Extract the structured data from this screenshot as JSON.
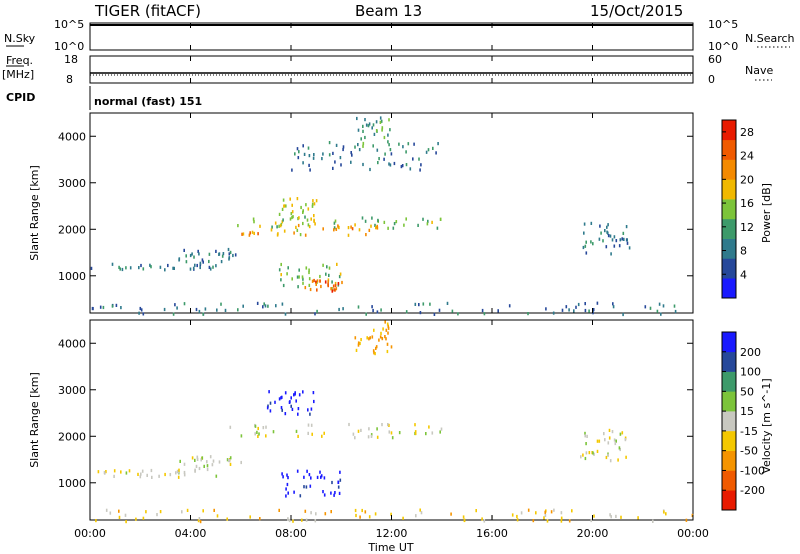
{
  "header": {
    "radar": "TIGER (fitACF)",
    "beam": "Beam 13",
    "date": "15/Oct/2015"
  },
  "status_panels": {
    "nsky_label": "N.Sky",
    "nsky_ticks": [
      "10^5",
      "10^0"
    ],
    "nsearch_label": "N.Search",
    "freq_label": "Freq.",
    "freq_unit": "[MHz]",
    "freq_ticks": [
      "18",
      "8"
    ],
    "nave_label": "Nave",
    "nave_ticks": [
      "60",
      "0"
    ],
    "cpid_label": "CPID",
    "cpid_value": "normal (fast) 151"
  },
  "time_ticks": [
    "00:00",
    "04:00",
    "08:00",
    "12:00",
    "16:00",
    "20:00",
    "00:00"
  ],
  "time_title": "Time UT",
  "colors": {
    "power": [
      "#1a1aff",
      "#26489a",
      "#2f7a8c",
      "#3d9a6a",
      "#7cc43a",
      "#f0b800",
      "#f48a00",
      "#f05a00",
      "#e81a00"
    ],
    "velocity": [
      "#e81a00",
      "#f05a00",
      "#f59400",
      "#f4c800",
      "#c8c8c0",
      "#7cc43a",
      "#3d9a6a",
      "#26489a",
      "#1a1aff"
    ]
  },
  "chart_data": [
    {
      "type": "heatmap",
      "panel": "power",
      "xlabel": "Time UT",
      "ylabel": "Slant Range [km]",
      "xlim": [
        0,
        24
      ],
      "ylim": [
        200,
        4500
      ],
      "y_ticks": [
        1000,
        2000,
        3000,
        4000
      ],
      "x_ticks_hours": [
        0,
        4,
        8,
        12,
        16,
        20,
        24
      ],
      "colorbar": {
        "label": "Power [dB]",
        "ticks": [
          4,
          8,
          12,
          16,
          20,
          24,
          28
        ],
        "range": [
          0,
          30
        ]
      },
      "regions": [
        {
          "t": [
            0,
            5
          ],
          "r": [
            1150,
            1300
          ],
          "value": 8
        },
        {
          "t": [
            3.5,
            6
          ],
          "r": [
            1300,
            1600
          ],
          "value": 8
        },
        {
          "t": [
            5.5,
            14
          ],
          "r": [
            2050,
            2300
          ],
          "value": 14
        },
        {
          "t": [
            6,
            11.5
          ],
          "r": [
            1900,
            2150
          ],
          "value": 20
        },
        {
          "t": [
            7.5,
            10
          ],
          "r": [
            750,
            1300
          ],
          "value": 14
        },
        {
          "t": [
            8.5,
            10
          ],
          "r": [
            700,
            950
          ],
          "value": 24
        },
        {
          "t": [
            7.5,
            9
          ],
          "r": [
            2200,
            2700
          ],
          "value": 16
        },
        {
          "t": [
            10.5,
            12
          ],
          "r": [
            3800,
            4500
          ],
          "value": 12
        },
        {
          "t": [
            8,
            14
          ],
          "r": [
            3300,
            3900
          ],
          "value": 8
        },
        {
          "t": [
            19.5,
            21.5
          ],
          "r": [
            1500,
            2200
          ],
          "value": 8
        },
        {
          "t": [
            0,
            24
          ],
          "r": [
            200,
            450
          ],
          "value": 8
        }
      ]
    },
    {
      "type": "heatmap",
      "panel": "velocity",
      "xlabel": "Time UT",
      "ylabel": "Slant Range [km]",
      "xlim": [
        0,
        24
      ],
      "ylim": [
        200,
        4500
      ],
      "y_ticks": [
        1000,
        2000,
        3000,
        4000
      ],
      "x_ticks_hours": [
        0,
        4,
        8,
        12,
        16,
        20,
        24
      ],
      "colorbar": {
        "label": "Velocity [m s^-1]",
        "ticks": [
          "200",
          "100",
          "50",
          "15",
          "-15",
          "-50",
          "-100",
          "-200"
        ]
      },
      "regions": [
        {
          "t": [
            0,
            5
          ],
          "r": [
            1150,
            1300
          ],
          "value": 0
        },
        {
          "t": [
            3.5,
            6
          ],
          "r": [
            1300,
            1600
          ],
          "value": 0
        },
        {
          "t": [
            5.5,
            14
          ],
          "r": [
            2000,
            2300
          ],
          "value": 0
        },
        {
          "t": [
            7.5,
            10
          ],
          "r": [
            750,
            1300
          ],
          "value": 220
        },
        {
          "t": [
            7,
            9
          ],
          "r": [
            2500,
            3000
          ],
          "value": 220
        },
        {
          "t": [
            10.5,
            12
          ],
          "r": [
            3800,
            4500
          ],
          "value": -60
        },
        {
          "t": [
            19.5,
            21.5
          ],
          "r": [
            1500,
            2200
          ],
          "value": 0
        },
        {
          "t": [
            0,
            24
          ],
          "r": [
            200,
            450
          ],
          "value": -30
        }
      ]
    }
  ]
}
